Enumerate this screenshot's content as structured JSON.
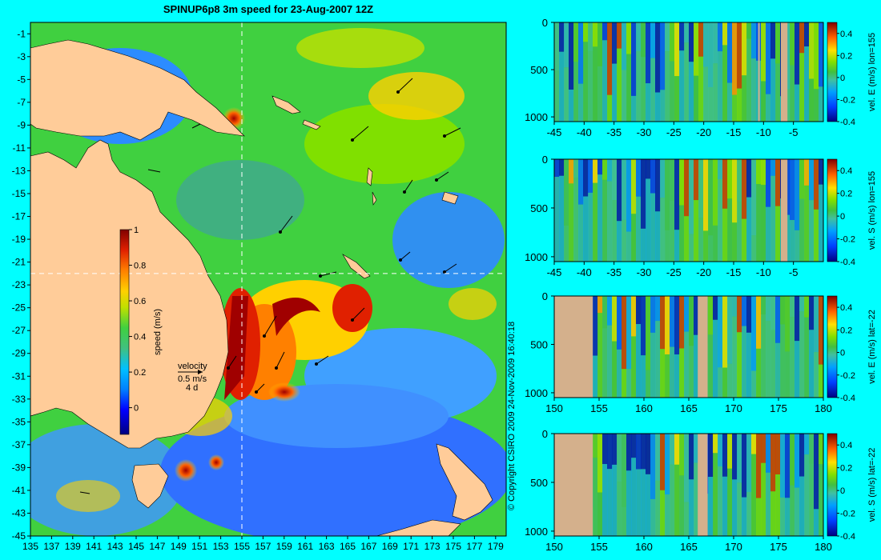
{
  "chart_data": [
    {
      "type": "heatmap",
      "title": "SPINUP6p8 3m speed for 23-Aug-2007 12Z",
      "x_ticks": [
        "135",
        "137",
        "139",
        "141",
        "143",
        "145",
        "147",
        "149",
        "151",
        "153",
        "155",
        "157",
        "159",
        "161",
        "163",
        "165",
        "167",
        "169",
        "171",
        "173",
        "175",
        "177",
        "179"
      ],
      "y_ticks": [
        "-1",
        "-3",
        "-5",
        "-7",
        "-9",
        "-11",
        "-13",
        "-15",
        "-17",
        "-19",
        "-21",
        "-23",
        "-25",
        "-27",
        "-29",
        "-31",
        "-33",
        "-35",
        "-37",
        "-39",
        "-41",
        "-43",
        "-45"
      ],
      "xlim": [
        135,
        180
      ],
      "ylim": [
        -45,
        0
      ],
      "section_lines": {
        "lon": 155,
        "lat": -22
      },
      "colorbar": {
        "label": "speed (m/s)",
        "range": [
          -0.15,
          1
        ],
        "ticks": [
          "1",
          "0.8",
          "0.6",
          "0.4",
          "0.2",
          "0"
        ]
      },
      "legend": {
        "title": "velocity",
        "scale_label": "0.5 m/s",
        "duration_label": "4 d"
      },
      "land_color": "#ffcc99",
      "colors": {
        "low": "#3060ff",
        "mid": "#40d040",
        "high": "#ffd000",
        "max": "#a00000"
      }
    },
    {
      "type": "heatmap",
      "x_ticks": [
        "-45",
        "-40",
        "-35",
        "-30",
        "-25",
        "-20",
        "-15",
        "-10",
        "-5"
      ],
      "xlim": [
        -45,
        0
      ],
      "y_ticks": [
        "0",
        "500",
        "1000"
      ],
      "ylim": [
        0,
        1050
      ],
      "colorbar": {
        "label": "vel. E (m/s) lon=155",
        "range": [
          -0.4,
          0.5
        ],
        "ticks": [
          "0.4",
          "0.2",
          "0",
          "-0.2",
          "-0.4"
        ]
      },
      "land_cols": [
        [
          -10.9,
          -10.7
        ],
        [
          -7.1,
          -6.0
        ]
      ]
    },
    {
      "type": "heatmap",
      "x_ticks": [
        "-45",
        "-40",
        "-35",
        "-30",
        "-25",
        "-20",
        "-15",
        "-10",
        "-5"
      ],
      "xlim": [
        -45,
        0
      ],
      "y_ticks": [
        "0",
        "500",
        "1000"
      ],
      "ylim": [
        0,
        1050
      ],
      "colorbar": {
        "label": "vel. S (m/s) lon=155",
        "range": [
          -0.4,
          0.5
        ],
        "ticks": [
          "0.4",
          "0.2",
          "0",
          "-0.2",
          "-0.4"
        ]
      },
      "land_cols": [
        [
          -7.1,
          -6.0
        ]
      ]
    },
    {
      "type": "heatmap",
      "x_ticks": [
        "150",
        "155",
        "160",
        "165",
        "170",
        "175",
        "180"
      ],
      "xlim": [
        150,
        180
      ],
      "y_ticks": [
        "0",
        "500",
        "1000"
      ],
      "ylim": [
        0,
        1050
      ],
      "colorbar": {
        "label": "vel. E (m/s) lat=-22",
        "range": [
          -0.4,
          0.5
        ],
        "ticks": [
          "0.4",
          "0.2",
          "0",
          "-0.2",
          "-0.4"
        ]
      },
      "land_cols": [
        [
          150,
          154.3
        ],
        [
          166,
          167.1
        ]
      ]
    },
    {
      "type": "heatmap",
      "x_ticks": [
        "150",
        "155",
        "160",
        "165",
        "170",
        "175",
        "180"
      ],
      "xlim": [
        150,
        180
      ],
      "y_ticks": [
        "0",
        "500",
        "1000"
      ],
      "ylim": [
        0,
        1050
      ],
      "colorbar": {
        "label": "vel. S (m/s) lat=-22",
        "range": [
          -0.4,
          0.5
        ],
        "ticks": [
          "0.4",
          "0.2",
          "0",
          "-0.2",
          "-0.4"
        ]
      },
      "land_cols": [
        [
          150,
          154.3
        ],
        [
          166,
          167.1
        ]
      ]
    }
  ],
  "copyright": "© Copyright CSIRO 2009   24-Nov-2009 16:40:18"
}
